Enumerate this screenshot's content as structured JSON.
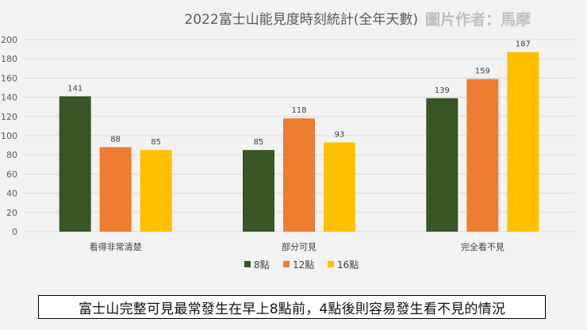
{
  "chart_data": {
    "type": "bar",
    "title": "2022富士山能見度時刻統計(全年天數)",
    "credit": "圖片作者：馬摩",
    "categories": [
      "看得非常清楚",
      "部分可見",
      "完全看不見"
    ],
    "series": [
      {
        "name": "8點",
        "color": "#375623",
        "values": [
          141,
          85,
          139
        ]
      },
      {
        "name": "12點",
        "color": "#ed7d31",
        "values": [
          88,
          118,
          159
        ]
      },
      {
        "name": "16點",
        "color": "#ffc000",
        "values": [
          85,
          93,
          187
        ]
      }
    ],
    "ylim": [
      0,
      200
    ],
    "yticks": [
      0,
      20,
      40,
      60,
      80,
      100,
      120,
      140,
      160,
      180,
      200
    ],
    "xlabel": "",
    "ylabel": "",
    "grid": true,
    "legend": "bottom-center"
  },
  "caption": "富士山完整可見最常發生在早上8點前，4點後則容易發生看不見的情況"
}
